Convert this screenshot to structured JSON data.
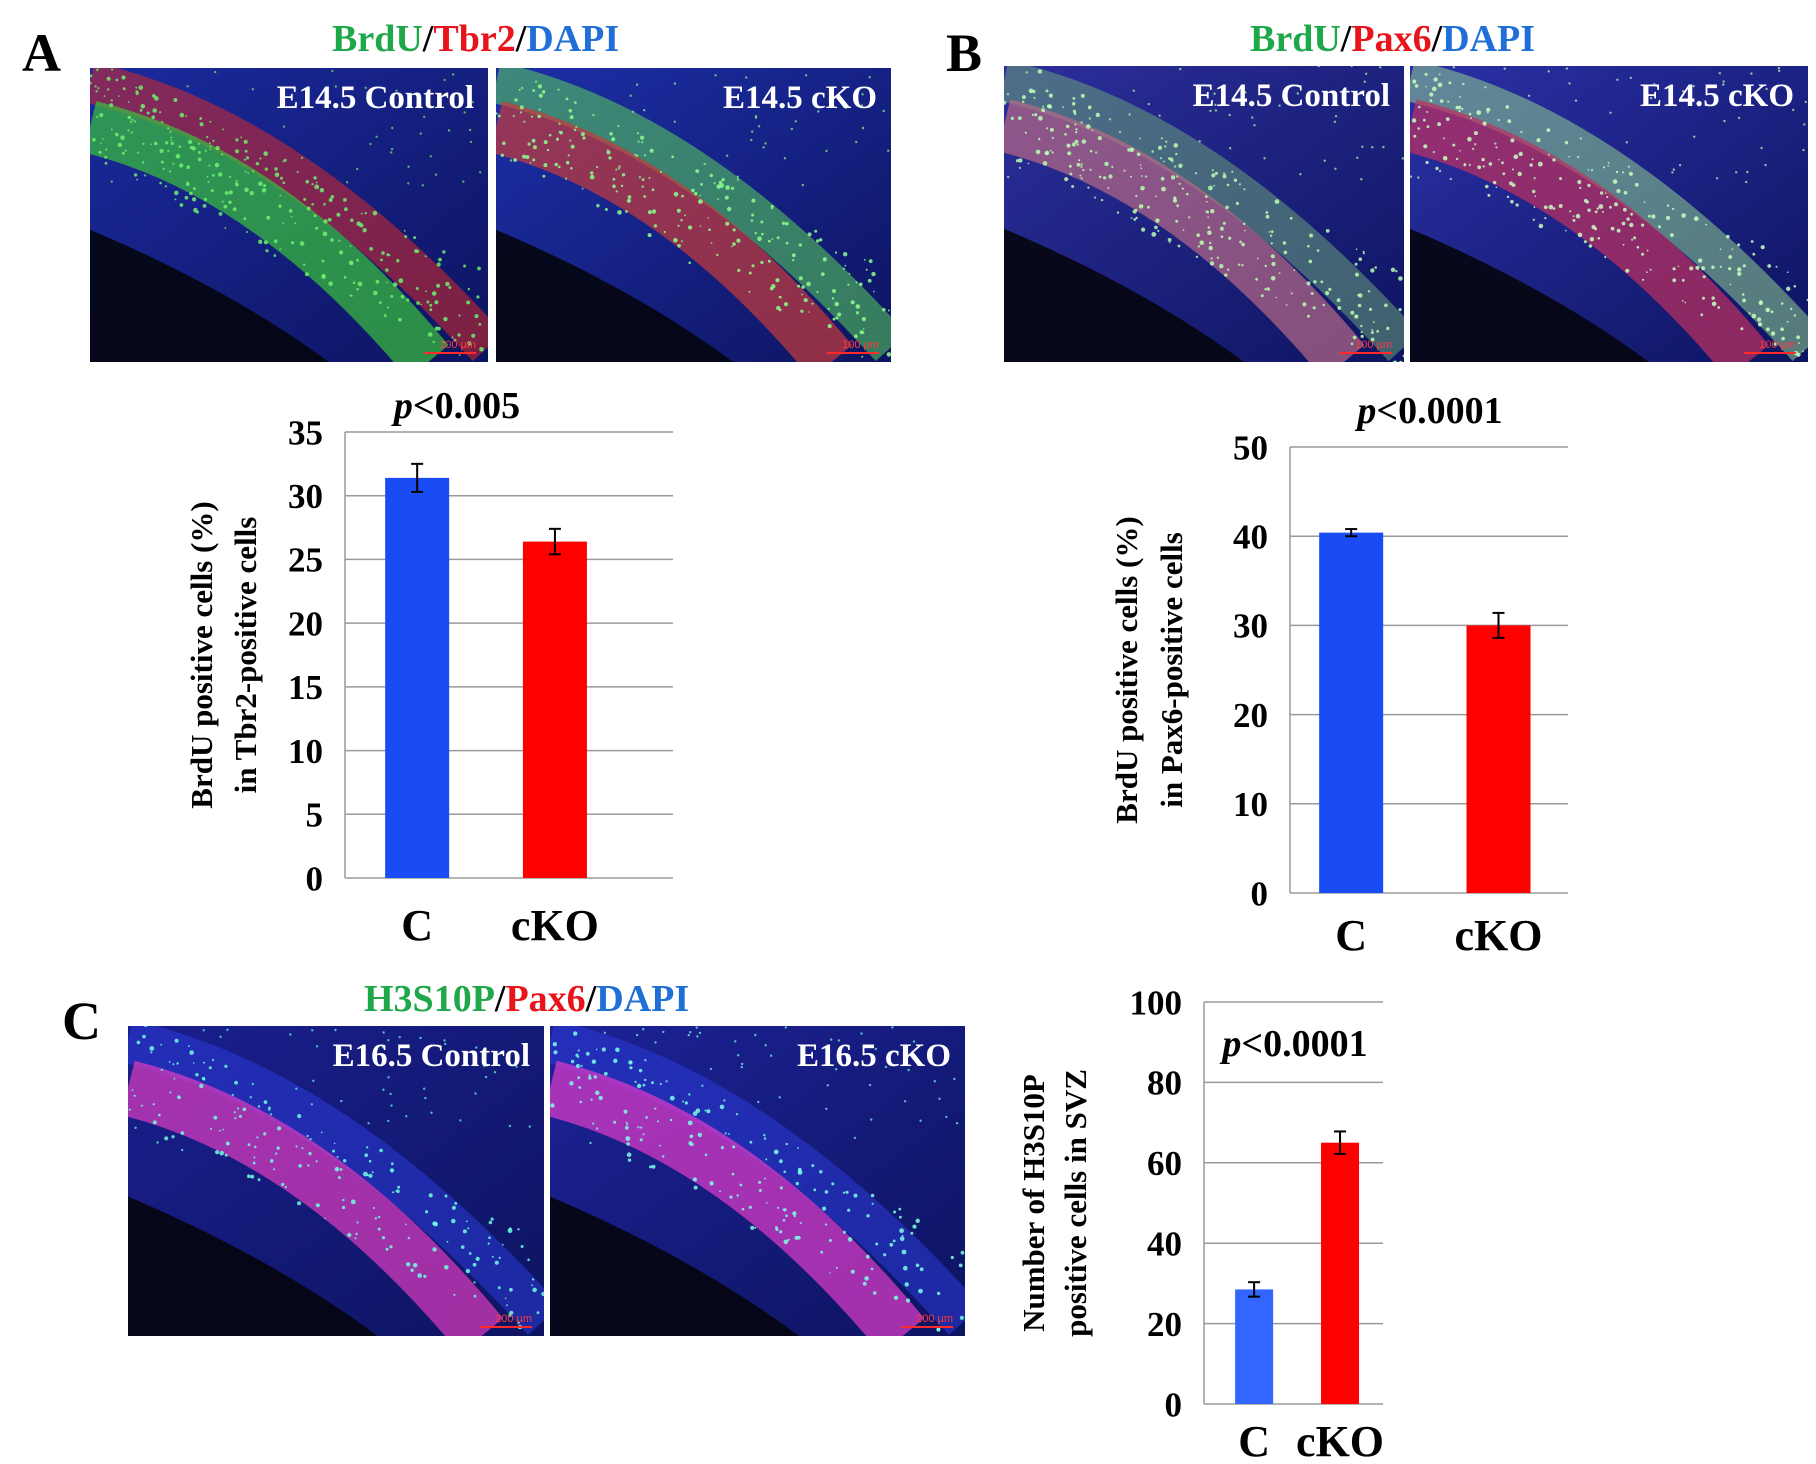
{
  "panels": [
    {
      "letter": "A",
      "stain": [
        {
          "text": "BrdU",
          "color": "#1fa84a"
        },
        {
          "text": "/",
          "color": "#000000"
        },
        {
          "text": "Tbr2",
          "color": "#e8141b"
        },
        {
          "text": "/",
          "color": "#000000"
        },
        {
          "text": "DAPI",
          "color": "#1f6fd6"
        }
      ],
      "images": [
        {
          "label": "E14.5 Control",
          "scale_bar": "100 µm"
        },
        {
          "label": "E14.5 cKO",
          "scale_bar": "100 µm"
        }
      ]
    },
    {
      "letter": "B",
      "stain": [
        {
          "text": "BrdU",
          "color": "#1fa84a"
        },
        {
          "text": "/",
          "color": "#000000"
        },
        {
          "text": "Pax6",
          "color": "#e8141b"
        },
        {
          "text": "/",
          "color": "#000000"
        },
        {
          "text": "DAPI",
          "color": "#1f6fd6"
        }
      ],
      "images": [
        {
          "label": "E14.5 Control",
          "scale_bar": "100 µm"
        },
        {
          "label": "E14.5 cKO",
          "scale_bar": "100 µm"
        }
      ]
    },
    {
      "letter": "C",
      "stain": [
        {
          "text": "H3S10P",
          "color": "#1fa84a"
        },
        {
          "text": "/",
          "color": "#000000"
        },
        {
          "text": "Pax6",
          "color": "#e8141b"
        },
        {
          "text": "/",
          "color": "#000000"
        },
        {
          "text": "DAPI",
          "color": "#1f6fd6"
        }
      ],
      "images": [
        {
          "label": "E16.5 Control",
          "scale_bar": "200 µm"
        },
        {
          "label": "E16.5 cKO",
          "scale_bar": "200 µm"
        }
      ]
    }
  ],
  "chart_data": [
    {
      "type": "bar",
      "panel": "A",
      "categories": [
        "C",
        "cKO"
      ],
      "values": [
        31.4,
        26.4
      ],
      "errors": [
        1.1,
        1.0
      ],
      "colors": [
        "#1a4cf5",
        "#ff0000"
      ],
      "ylim": [
        0,
        35
      ],
      "yticks": [
        0,
        5,
        10,
        15,
        20,
        25,
        30,
        35
      ],
      "ylabel": [
        "BrdU positive cells (%)",
        "in Tbr2-positive cells"
      ],
      "annotation": {
        "italic": "p",
        "rest": "<0.005"
      },
      "grid": true
    },
    {
      "type": "bar",
      "panel": "B",
      "categories": [
        "C",
        "cKO"
      ],
      "values": [
        40.4,
        30.0
      ],
      "errors": [
        0.4,
        1.4
      ],
      "colors": [
        "#1a4cf5",
        "#ff0000"
      ],
      "ylim": [
        0,
        50
      ],
      "yticks": [
        0,
        10,
        20,
        30,
        40,
        50
      ],
      "ylabel": [
        "BrdU positive cells (%)",
        "in Pax6-positive cells"
      ],
      "annotation": {
        "italic": "p",
        "rest": "<0.0001"
      },
      "grid": true
    },
    {
      "type": "bar",
      "panel": "C",
      "categories": [
        "C",
        "cKO"
      ],
      "values": [
        28.5,
        65.0
      ],
      "errors": [
        1.8,
        2.8
      ],
      "colors": [
        "#3366ff",
        "#ff0000"
      ],
      "ylim": [
        0,
        100
      ],
      "yticks": [
        0,
        20,
        40,
        60,
        80,
        100
      ],
      "ylabel": [
        "Number of H3S10P",
        "positive cells in SVZ"
      ],
      "annotation": {
        "italic": "p",
        "rest": "<0.0001"
      },
      "grid": true
    }
  ]
}
